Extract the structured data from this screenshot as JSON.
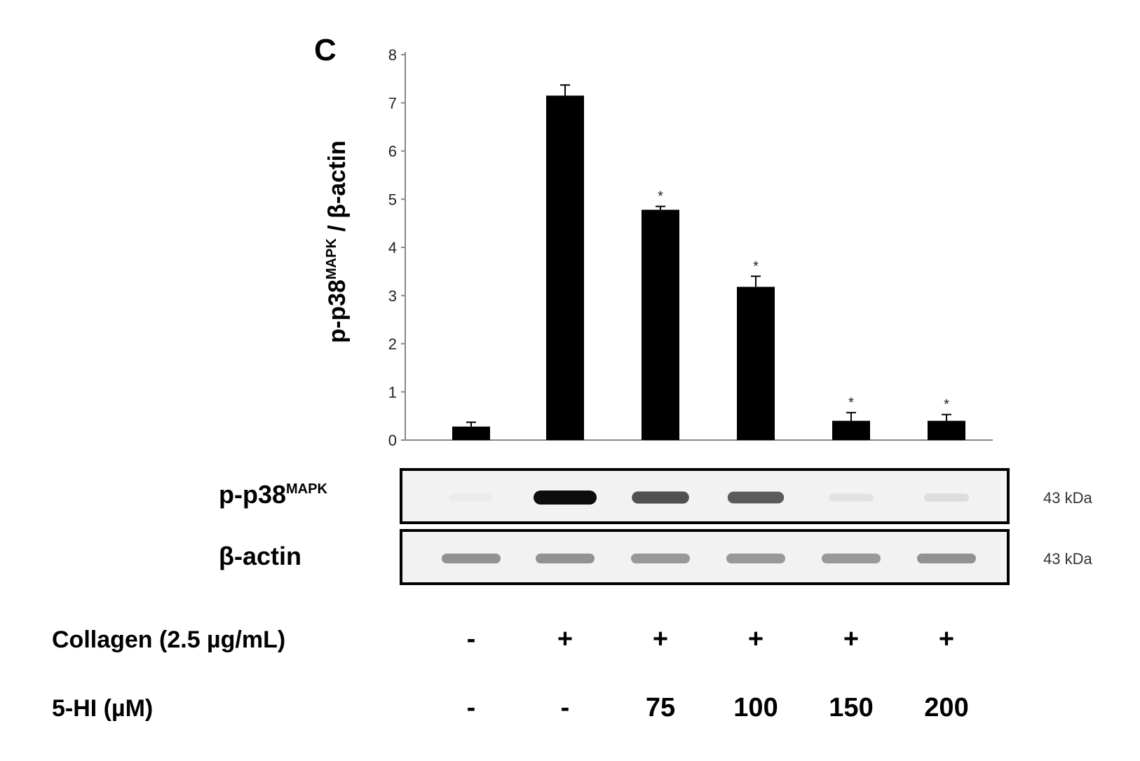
{
  "panel_letter": "C",
  "chart_data": {
    "type": "bar",
    "categories": [
      "1",
      "2",
      "3",
      "4",
      "5",
      "6"
    ],
    "values": [
      0.28,
      7.15,
      4.78,
      3.18,
      0.4,
      0.4
    ],
    "errors": [
      0.09,
      0.22,
      0.07,
      0.22,
      0.17,
      0.13
    ],
    "significant": [
      false,
      false,
      true,
      true,
      true,
      true
    ],
    "significance_marker": "*",
    "ylabel": {
      "main": "p-p38",
      "sup": "MAPK",
      "tail": " / β-actin"
    },
    "ylim": [
      0,
      8
    ],
    "yticks": [
      0,
      1,
      2,
      3,
      4,
      5,
      6,
      7,
      8
    ],
    "bar_color": "#000000",
    "grid": false,
    "legend": "none"
  },
  "blots": [
    {
      "label": "p-p38",
      "label_sup": "MAPK",
      "kda": "43 kDa",
      "intensity": [
        0.08,
        1.0,
        0.72,
        0.68,
        0.12,
        0.14
      ]
    },
    {
      "label": "β-actin",
      "label_sup": "",
      "kda": "43 kDa",
      "intensity": [
        0.45,
        0.45,
        0.42,
        0.42,
        0.42,
        0.45
      ]
    }
  ],
  "conditions": [
    {
      "label": "Collagen (2.5 µg/mL)",
      "values": [
        "-",
        "+",
        "+",
        "+",
        "+",
        "+"
      ]
    },
    {
      "label": "5-HI (µM)",
      "values": [
        "-",
        "-",
        "75",
        "100",
        "150",
        "200"
      ]
    }
  ]
}
